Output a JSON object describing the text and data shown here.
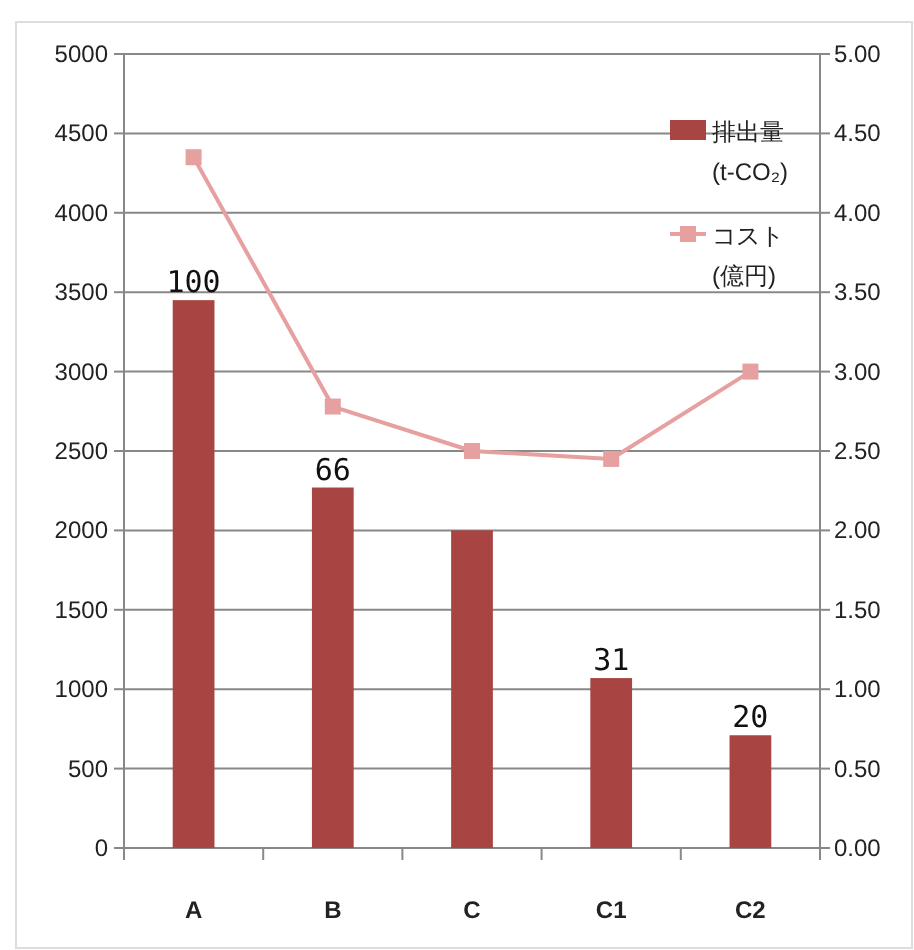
{
  "chart_data": {
    "type": "bar",
    "categories": [
      "A",
      "B",
      "C",
      "C1",
      "C2"
    ],
    "series": [
      {
        "name": "排出量 (t-CO₂)",
        "color": "#a84442",
        "values": [
          3450,
          2270,
          2000,
          1070,
          710
        ]
      },
      {
        "name": "コスト (億円)",
        "type": "line",
        "axis": "y2",
        "color": "#e6a0a0",
        "marker": "square",
        "values": [
          4.35,
          2.78,
          2.5,
          2.45,
          3.0
        ]
      }
    ],
    "annotations": [
      {
        "text": "100",
        "x": "A",
        "y": 3450
      },
      {
        "text": "66",
        "x": "B",
        "y": 2270
      },
      {
        "text": "31",
        "x": "C1",
        "y": 1070
      },
      {
        "text": "20",
        "x": "C2",
        "y": 710
      }
    ],
    "ylim": [
      0,
      5000
    ],
    "yticks": [
      0,
      500,
      1000,
      1500,
      2000,
      2500,
      3000,
      3500,
      4000,
      4500,
      5000
    ],
    "y2lim": [
      0,
      5
    ],
    "y2ticks": [
      {
        "value": 0,
        "label": "0.00"
      },
      {
        "value": 0.5,
        "label": "0.50"
      },
      {
        "value": 1,
        "label": "1.00"
      },
      {
        "value": 1.5,
        "label": "1.50"
      },
      {
        "value": 2,
        "label": "2.00"
      },
      {
        "value": 2.5,
        "label": "2.50"
      },
      {
        "value": 3,
        "label": "3.00"
      },
      {
        "value": 3.5,
        "label": "3.50"
      },
      {
        "value": 4,
        "label": "4.00"
      },
      {
        "value": 4.5,
        "label": "4.50"
      },
      {
        "value": 5,
        "label": "5.00"
      }
    ],
    "grid": "y",
    "legend": "top right"
  }
}
